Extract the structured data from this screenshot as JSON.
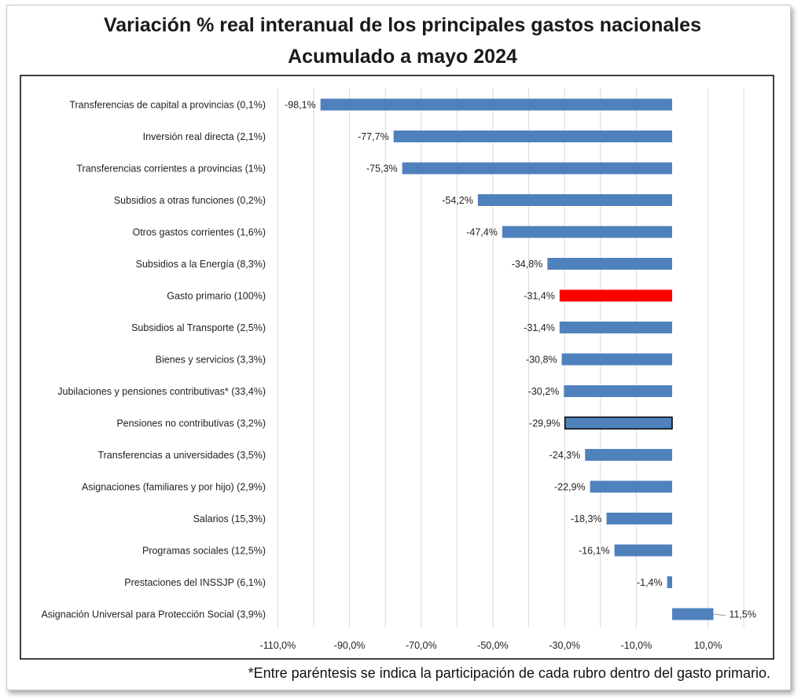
{
  "chart_data": {
    "type": "bar",
    "orientation": "horizontal",
    "title": "Variación % real interanual de los principales gastos nacionales",
    "subtitle": "Acumulado a mayo 2024",
    "categories": [
      "Transferencias de capital a provincias (0,1%)",
      "Inversión real directa (2,1%)",
      "Transferencias corrientes a provincias (1%)",
      "Subsidios a otras funciones (0,2%)",
      "Otros gastos corrientes (1,6%)",
      "Subsidios a la Energía (8,3%)",
      "Gasto primario (100%)",
      "Subsidios al Transporte (2,5%)",
      "Bienes y servicios (3,3%)",
      "Jubilaciones y pensiones contributivas* (33,4%)",
      "Pensiones no contributivas (3,2%)",
      "Transferencias a universidades (3,5%)",
      "Asignaciones (familiares y por hijo) (2,9%)",
      "Salarios (15,3%)",
      "Programas sociales (12,5%)",
      "Prestaciones del INSSJP (6,1%)",
      "Asignación Universal para Protección Social (3,9%)"
    ],
    "values": [
      -98.1,
      -77.7,
      -75.3,
      -54.2,
      -47.4,
      -34.8,
      -31.4,
      -31.4,
      -30.8,
      -30.2,
      -29.9,
      -24.3,
      -22.9,
      -18.3,
      -16.1,
      -1.4,
      11.5
    ],
    "data_labels": [
      "-98,1%",
      "-77,7%",
      "-75,3%",
      "-54,2%",
      "-47,4%",
      "-34,8%",
      "-31,4%",
      "-31,4%",
      "-30,8%",
      "-30,2%",
      "-29,9%",
      "-24,3%",
      "-22,9%",
      "-18,3%",
      "-16,1%",
      "-1,4%",
      "11,5%"
    ],
    "highlight_index": 6,
    "outlined_index": 10,
    "xlim": [
      -110,
      20
    ],
    "xticks": [
      -110,
      -90,
      -70,
      -50,
      -30,
      -10,
      10
    ],
    "xtick_labels": [
      "-110,0%",
      "-90,0%",
      "-70,0%",
      "-50,0%",
      "-30,0%",
      "-10,0%",
      "10,0%"
    ],
    "grid": true,
    "xlabel": "",
    "ylabel": "",
    "colors": {
      "bar": "#4f81bd",
      "highlight": "#ff0000",
      "grid": "#d9d9d9",
      "outline": "#000000"
    }
  },
  "footnote": "*Entre paréntesis se indica la participación de cada rubro dentro del gasto primario."
}
